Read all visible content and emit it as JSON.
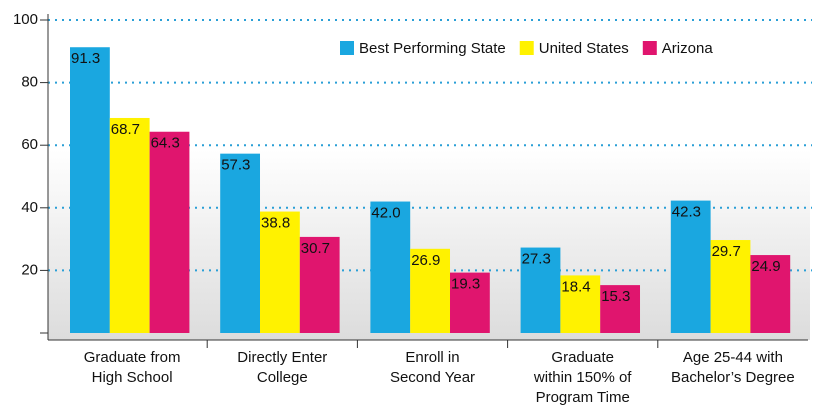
{
  "chart_data": {
    "type": "bar",
    "categories": [
      [
        "Graduate from",
        "High School"
      ],
      [
        "Directly Enter",
        "College"
      ],
      [
        "Enroll in",
        "Second Year"
      ],
      [
        "Graduate",
        "within 150% of",
        "Program Time"
      ],
      [
        "Age 25-44 with",
        "Bachelor’s Degree"
      ]
    ],
    "series": [
      {
        "name": "Best Performing State",
        "color": "#1aa7e0",
        "values": [
          91.3,
          57.3,
          42.0,
          27.3,
          42.3
        ],
        "value_labels": [
          "91.3",
          "57.3",
          "42.0",
          "27.3",
          "42.3"
        ]
      },
      {
        "name": "United States",
        "color": "#fff200",
        "values": [
          68.7,
          38.8,
          26.9,
          18.4,
          29.7
        ],
        "value_labels": [
          "68.7",
          "38.8",
          "26.9",
          "18.4",
          "29.7"
        ]
      },
      {
        "name": "Arizona",
        "color": "#e0156e",
        "values": [
          64.3,
          30.7,
          19.3,
          15.3,
          24.9
        ],
        "value_labels": [
          "64.3",
          "30.7",
          "19.3",
          "15.3",
          "24.9"
        ]
      }
    ],
    "ylim": [
      0,
      100
    ],
    "yticks": [
      20,
      40,
      60,
      80,
      100
    ],
    "grid": true,
    "legend": "top-right"
  }
}
